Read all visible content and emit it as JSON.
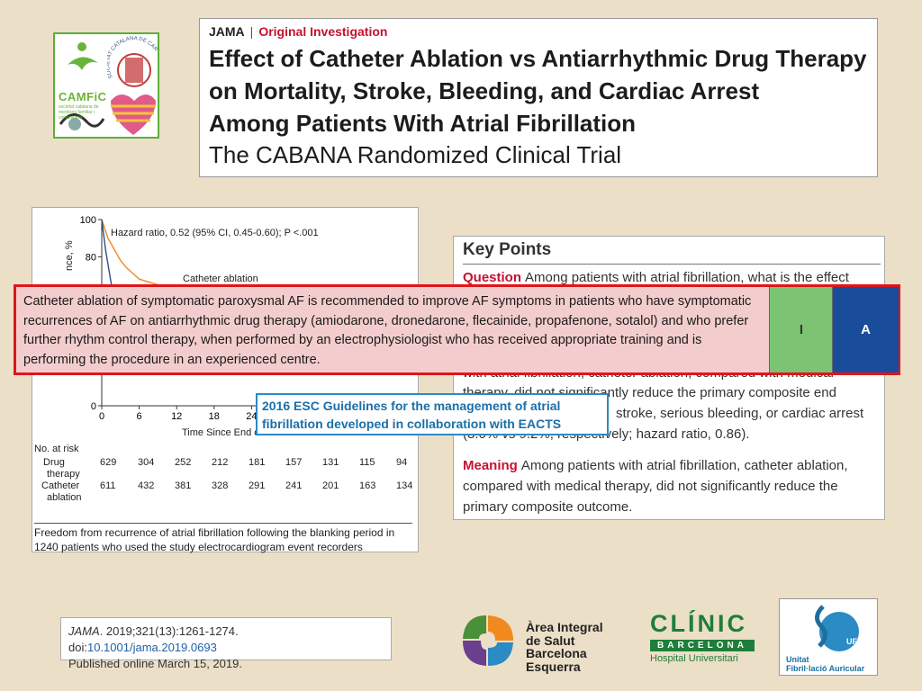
{
  "header": {
    "journal": "JAMA",
    "separator": "|",
    "article_type": "Original Investigation",
    "title_lines": [
      "Effect of Catheter Ablation vs Antiarrhythmic Drug Therapy",
      "on Mortality, Stroke, Bleeding, and Cardiac Arrest",
      "Among Patients With Atrial Fibrillation"
    ],
    "subtitle": "The CABANA Randomized Clinical Trial"
  },
  "logos": {
    "camfic": "CAMFiC",
    "camfic_sub": "societat catalana de medicina familiar i comunitària",
    "cardiologia_arc": "SOCIETAT CATALANA DE CARDIOLOGIA",
    "aisbe": [
      "Àrea Integral",
      "de Salut",
      "Barcelona Esquerra"
    ],
    "clinic": "CLÍNIC",
    "clinic_city": "BARCELONA",
    "clinic_hospital": "Hospital Universitari",
    "ufa_badge": "UFA",
    "ufa_lines": [
      "Unitat",
      "Fibril·lació Auricular"
    ]
  },
  "chart_data": {
    "type": "line",
    "annotation": "Hazard ratio, 0.52 (95% CI, 0.45-0.60); P <.001",
    "ylabel": "nce, %",
    "xlabel": "Time Since End o",
    "y_ticks": [
      "100",
      "80",
      "0"
    ],
    "x_ticks": [
      "0",
      "6",
      "12",
      "18",
      "24"
    ],
    "ylim": [
      0,
      100
    ],
    "xlim": [
      0,
      36
    ],
    "series": [
      {
        "name": "Catheter ablation",
        "color": "#f08a1e",
        "x": [
          0,
          0.5,
          1,
          2,
          3,
          4,
          5,
          6,
          8,
          10,
          12,
          14,
          16,
          18,
          20,
          24,
          30,
          36
        ],
        "y": [
          100,
          95,
          90,
          84,
          78,
          74,
          71,
          68,
          66,
          64,
          63,
          62,
          61,
          60,
          59.5,
          58.5,
          57.5,
          57
        ]
      },
      {
        "name": "Drug therapy",
        "color": "#2b4f8a",
        "x": [
          0,
          0.3,
          0.6,
          1,
          1.5,
          2,
          3
        ],
        "y": [
          100,
          92,
          84,
          76,
          66,
          58,
          50
        ]
      }
    ],
    "risk_table": {
      "title": "No. at risk",
      "rows": [
        {
          "label": [
            "Drug",
            "therapy"
          ],
          "values": [
            "629",
            "304",
            "252",
            "212",
            "181",
            "157",
            "131",
            "115",
            "94"
          ]
        },
        {
          "label": [
            "Catheter",
            "ablation"
          ],
          "values": [
            "611",
            "432",
            "381",
            "328",
            "291",
            "241",
            "201",
            "163",
            "134"
          ]
        }
      ]
    },
    "caption": "Freedom from recurrence of atrial fibrillation following the blanking period in 1240 patients who used the study electrocardiogram event recorders"
  },
  "key_points": {
    "title": "Key Points",
    "question_label": "Question",
    "question_text": "Among patients with atrial fibrillation, what is the effect",
    "findings_partial_lines": [
      "with atrial fibrillation, catheter ablation, compared with medical",
      "therapy, did not significantly reduce the primary composite end",
      "stroke, serious bleeding, or cardiac arrest",
      "(8.0% vs 9.2%, respectively; hazard ratio, 0.86)."
    ],
    "meaning_label": "Meaning",
    "meaning_text": "Among patients with atrial fibrillation, catheter ablation, compared with medical therapy, did not significantly reduce the primary composite outcome."
  },
  "recommendation": {
    "text": "Catheter ablation of symptomatic paroxysmal AF is recommended to improve AF symptoms in patients who have symptomatic recurrences of AF on antiarrhythmic drug therapy (amiodarone, dronedarone, flecainide, propafenone, sotalol) and who prefer further rhythm control therapy, when performed by an electrophysiologist who has received appropriate training and is performing the procedure in an experienced centre.",
    "class": "I",
    "level": "A"
  },
  "esc_label": "2016 ESC Guidelines for the management of atrial fibrillation developed in collaboration with EACTS",
  "citation": {
    "journal": "JAMA",
    "details": ". 2019;321(13):1261-1274. doi:",
    "doi": "10.1001/jama.2019.0693",
    "published": "Published online March 15, 2019."
  }
}
